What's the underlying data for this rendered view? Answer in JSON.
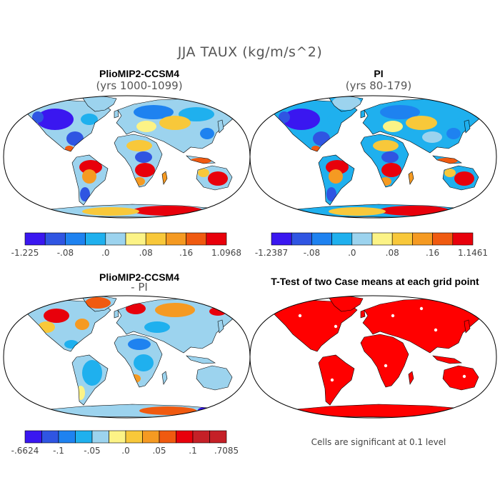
{
  "title": "JJA TAUX (kg/m/s^2)",
  "colors": {
    "scale": [
      "#3a17f0",
      "#2f55e2",
      "#1e82f0",
      "#1fb0ee",
      "#9cd3ee",
      "#fcf386",
      "#f8c83a",
      "#f59a22",
      "#f05a10",
      "#e8000b",
      "#c52027"
    ],
    "significant": "#ff0000",
    "ocean": "#ffffff",
    "outline": "#000000"
  },
  "panels": [
    {
      "title": "PlioMIP2-CCSM4",
      "subtitle": "(yrs 1000-1099)",
      "colorbar": {
        "labels": [
          "-1.225",
          "-.08",
          ".0",
          ".08",
          ".16",
          "1.0968"
        ]
      }
    },
    {
      "title": "PI",
      "subtitle": "(yrs 80-179)",
      "colorbar": {
        "labels": [
          "-1.2387",
          "-.08",
          ".0",
          ".08",
          ".16",
          "1.1461"
        ]
      }
    },
    {
      "title": "PlioMIP2-CCSM4",
      "subtitle": "- PI",
      "colorbar": {
        "labels": [
          "-.6624",
          "-.1",
          "-.05",
          ".0",
          ".05",
          ".1",
          ".7085"
        ]
      }
    },
    {
      "title": "T-Test of two Case means at each grid point",
      "note": "Cells are significant at 0.1 level"
    }
  ],
  "chart_data": [
    {
      "type": "heatmap",
      "title": "PlioMIP2-CCSM4 (yrs 1000-1099)",
      "variable": "JJA TAUX",
      "units": "kg/m/s^2",
      "range": [
        -1.225,
        1.0968
      ],
      "colorbar_ticks": [
        -0.08,
        0.0,
        0.08,
        0.16
      ]
    },
    {
      "type": "heatmap",
      "title": "PI (yrs 80-179)",
      "variable": "JJA TAUX",
      "units": "kg/m/s^2",
      "range": [
        -1.2387,
        1.1461
      ],
      "colorbar_ticks": [
        -0.08,
        0.0,
        0.08,
        0.16
      ]
    },
    {
      "type": "heatmap",
      "title": "PlioMIP2-CCSM4 - PI",
      "variable": "JJA TAUX",
      "units": "kg/m/s^2",
      "range": [
        -0.6624,
        0.7085
      ],
      "colorbar_ticks": [
        -0.1,
        -0.05,
        0.0,
        0.05,
        0.1
      ]
    },
    {
      "type": "heatmap",
      "title": "T-Test of two Case means at each grid point",
      "significance_level": 0.1
    }
  ]
}
